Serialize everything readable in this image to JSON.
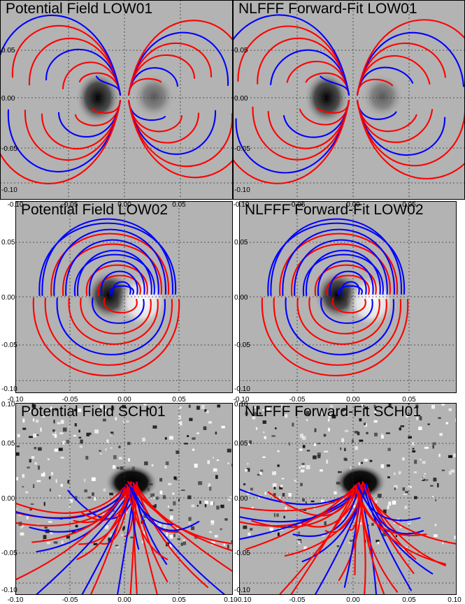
{
  "figure": {
    "panels": [
      {
        "title": "Potential Field LOW01",
        "case": "low",
        "variant": "pf"
      },
      {
        "title": "NLFFF Forward-Fit LOW01",
        "case": "low",
        "variant": "nl"
      },
      {
        "title": "Potential Field LOW02",
        "case": "low2",
        "variant": "pf"
      },
      {
        "title": "NLFFF Forward-Fit LOW02",
        "case": "low2",
        "variant": "nl"
      },
      {
        "title": "Potential Field SCH01",
        "case": "sch",
        "variant": "pf"
      },
      {
        "title": "NLFFF Forward-Fit SCH01",
        "case": "sch",
        "variant": "nl"
      }
    ],
    "ticks": {
      "row1_y": [
        "0.05",
        "0.00",
        "-0.05",
        "-0.10"
      ],
      "row2_y": [
        "0.05",
        "0.00",
        "-0.05",
        "-0.10"
      ],
      "row3_y": [
        "0.10",
        "0.05",
        "0.00",
        "-0.05",
        "-0.10"
      ],
      "mid_x": [
        "-0.10",
        "-0.05",
        "0.00",
        "0.05"
      ],
      "bottom_x": [
        "-0.10",
        "-0.05",
        "0.00",
        "0.05",
        "0.10"
      ]
    },
    "colors": {
      "blue_lines": "#0000ff",
      "red_lines": "#ff0000",
      "background": "#b3b3b3"
    }
  }
}
